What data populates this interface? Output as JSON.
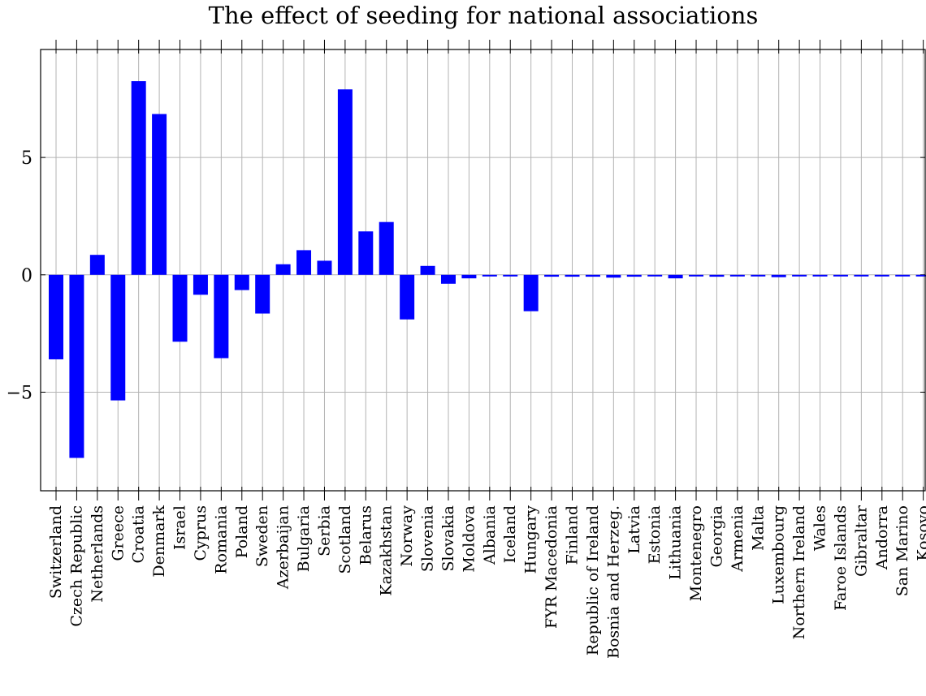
{
  "chart_data": {
    "type": "bar",
    "title": "The effect of seeding for national associations",
    "xlabel": "",
    "ylabel": "",
    "ylim": [
      -9.2,
      9.6
    ],
    "yticks": [
      -5,
      0,
      5
    ],
    "ytick_labels": [
      "−5",
      "0",
      "5"
    ],
    "grid": true,
    "bar_color": "#0000ff",
    "grid_color": "#b3b3b3",
    "categories": [
      "Switzerland",
      "Czech Republic",
      "Netherlands",
      "Greece",
      "Croatia",
      "Denmark",
      "Israel",
      "Cyprus",
      "Romania",
      "Poland",
      "Sweden",
      "Azerbaijan",
      "Bulgaria",
      "Serbia",
      "Scotland",
      "Belarus",
      "Kazakhstan",
      "Norway",
      "Slovenia",
      "Slovakia",
      "Moldova",
      "Albania",
      "Iceland",
      "Hungary",
      "FYR Macedonia",
      "Finland",
      "Republic of Ireland",
      "Bosnia and Herzeg.",
      "Latvia",
      "Estonia",
      "Lithuania",
      "Montenegro",
      "Georgia",
      "Armenia",
      "Malta",
      "Luxembourg",
      "Northern Ireland",
      "Wales",
      "Faroe Islands",
      "Gibraltar",
      "Andorra",
      "San Marino",
      "Kosovo"
    ],
    "values": [
      -3.6,
      -7.8,
      0.85,
      -5.35,
      8.25,
      6.85,
      -2.85,
      -0.85,
      -3.55,
      -0.65,
      -1.65,
      0.45,
      1.05,
      0.6,
      7.9,
      1.85,
      2.25,
      -1.9,
      0.38,
      -0.38,
      -0.15,
      -0.05,
      -0.05,
      -1.55,
      -0.08,
      -0.08,
      -0.08,
      -0.12,
      -0.08,
      -0.06,
      -0.15,
      -0.05,
      -0.08,
      -0.05,
      -0.05,
      -0.1,
      -0.05,
      -0.05,
      -0.05,
      -0.05,
      -0.05,
      -0.05,
      -0.05
    ]
  }
}
